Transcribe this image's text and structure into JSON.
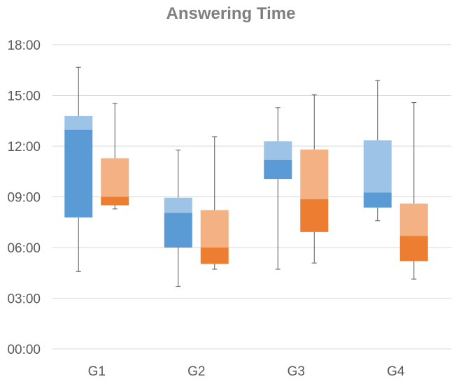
{
  "chart_data": {
    "type": "box",
    "title": "Answering Time",
    "xlabel": "",
    "ylabel": "",
    "ylim_minutes": [
      0,
      1080
    ],
    "y_ticks": [
      {
        "label": "00:00",
        "minutes": 0
      },
      {
        "label": "03:00",
        "minutes": 180
      },
      {
        "label": "06:00",
        "minutes": 360
      },
      {
        "label": "09:00",
        "minutes": 540
      },
      {
        "label": "12:00",
        "minutes": 720
      },
      {
        "label": "15:00",
        "minutes": 900
      },
      {
        "label": "18:00",
        "minutes": 1080
      }
    ],
    "grid": true,
    "legend": "none",
    "categories": [
      "G1",
      "G2",
      "G3",
      "G4"
    ],
    "series": [
      {
        "color_lower": "#5b9bd5",
        "color_upper": "#9dc3e6",
        "boxes": [
          {
            "min": 275,
            "q1": 467,
            "median": 778,
            "q3": 827,
            "max": 1000
          },
          {
            "min": 222,
            "q1": 360,
            "median": 483,
            "q3": 537,
            "max": 706
          },
          {
            "min": 283,
            "q1": 603,
            "median": 671,
            "q3": 737,
            "max": 857
          },
          {
            "min": 455,
            "q1": 502,
            "median": 555,
            "q3": 741,
            "max": 953
          }
        ]
      },
      {
        "color_lower": "#ed7d31",
        "color_upper": "#f4b183",
        "boxes": [
          {
            "min": 497,
            "q1": 510,
            "median": 540,
            "q3": 677,
            "max": 872
          },
          {
            "min": 283,
            "q1": 302,
            "median": 360,
            "q3": 493,
            "max": 753
          },
          {
            "min": 305,
            "q1": 415,
            "median": 532,
            "q3": 708,
            "max": 902
          },
          {
            "min": 248,
            "q1": 312,
            "median": 401,
            "q3": 516,
            "max": 875
          }
        ]
      }
    ]
  }
}
